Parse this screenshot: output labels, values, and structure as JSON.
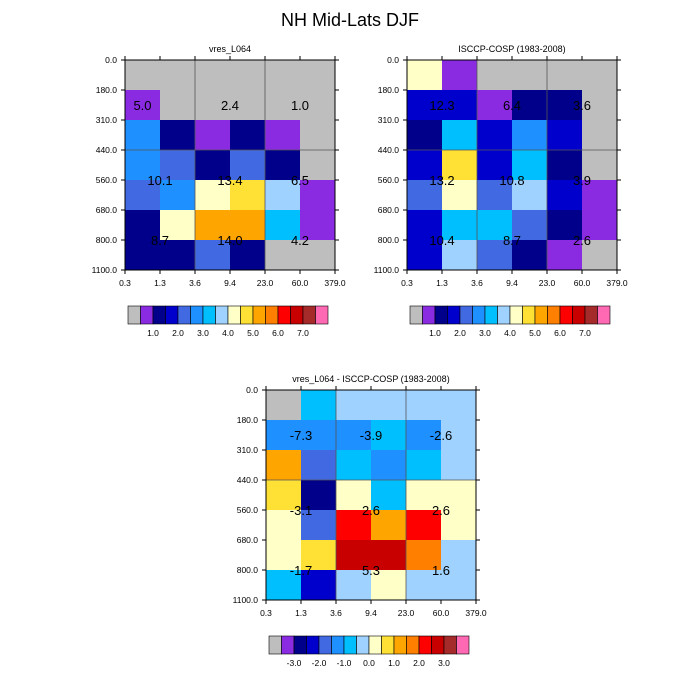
{
  "figure_title": "NH Mid-Lats DJF",
  "palette": {
    "main": [
      "#bebebe",
      "#8a2be2",
      "#00008b",
      "#0000cd",
      "#4169e1",
      "#1e90ff",
      "#00bfff",
      "#a0d2ff",
      "#ffffc8",
      "#ffe135",
      "#ffa500",
      "#ff7f00",
      "#ff0000",
      "#c80000",
      "#a52a2a",
      "#ff69b4"
    ],
    "diff": [
      "#bebebe",
      "#8a2be2",
      "#00008b",
      "#0000cd",
      "#4169e1",
      "#1e90ff",
      "#00bfff",
      "#a0d2ff",
      "#ffffc8",
      "#ffe135",
      "#ffa500",
      "#ff7f00",
      "#ff0000",
      "#c80000",
      "#a52a2a",
      "#ff69b4"
    ]
  },
  "chart_data": [
    {
      "type": "heatmap",
      "title": "vres_L064",
      "x_ticks": [
        "0.3",
        "1.3",
        "3.6",
        "9.4",
        "23.0",
        "60.0",
        "379.0"
      ],
      "y_ticks": [
        "0.0",
        "180.0",
        "310.0",
        "440.0",
        "560.0",
        "680.0",
        "800.0",
        "1100.0"
      ],
      "cell_colors": [
        [
          0,
          0,
          0,
          0,
          0,
          0
        ],
        [
          1,
          0,
          0,
          0,
          0,
          0
        ],
        [
          5,
          2,
          1,
          2,
          1,
          0
        ],
        [
          5,
          4,
          2,
          4,
          2,
          0
        ],
        [
          4,
          5,
          8,
          9,
          7,
          1
        ],
        [
          2,
          8,
          10,
          10,
          6,
          1
        ],
        [
          2,
          2,
          4,
          2,
          0,
          0
        ]
      ],
      "group_labels": [
        {
          "text": "5.0",
          "col": 0.5,
          "row": 1.5
        },
        {
          "text": "2.4",
          "col": 3,
          "row": 1.5
        },
        {
          "text": "1.0",
          "col": 5,
          "row": 1.5
        },
        {
          "text": "10.1",
          "col": 1,
          "row": 4
        },
        {
          "text": "13.4",
          "col": 3,
          "row": 4
        },
        {
          "text": "6.5",
          "col": 5,
          "row": 4
        },
        {
          "text": "8.7",
          "col": 1,
          "row": 6
        },
        {
          "text": "14.0",
          "col": 3,
          "row": 6
        },
        {
          "text": "4.2",
          "col": 5,
          "row": 6
        }
      ],
      "colorbar_labels": [
        "1.0",
        "2.0",
        "3.0",
        "4.0",
        "5.0",
        "6.0",
        "7.0"
      ]
    },
    {
      "type": "heatmap",
      "title": "ISCCP-COSP (1983-2008)",
      "x_ticks": [
        "0.3",
        "1.3",
        "3.6",
        "9.4",
        "23.0",
        "60.0",
        "379.0"
      ],
      "y_ticks": [
        "0.0",
        "180.0",
        "310.0",
        "440.0",
        "560.0",
        "680.0",
        "800.0",
        "1100.0"
      ],
      "cell_colors": [
        [
          8,
          1,
          0,
          0,
          0,
          0
        ],
        [
          3,
          3,
          1,
          2,
          2,
          0
        ],
        [
          2,
          6,
          3,
          5,
          3,
          0
        ],
        [
          3,
          9,
          3,
          6,
          2,
          0
        ],
        [
          4,
          8,
          4,
          7,
          3,
          1
        ],
        [
          3,
          6,
          6,
          4,
          2,
          1
        ],
        [
          3,
          7,
          4,
          2,
          1,
          0
        ]
      ],
      "group_labels": [
        {
          "text": "12.3",
          "col": 1,
          "row": 1.5
        },
        {
          "text": "6.4",
          "col": 3,
          "row": 1.5
        },
        {
          "text": "3.6",
          "col": 5,
          "row": 1.5
        },
        {
          "text": "13.2",
          "col": 1,
          "row": 4
        },
        {
          "text": "10.8",
          "col": 3,
          "row": 4
        },
        {
          "text": "3.9",
          "col": 5,
          "row": 4
        },
        {
          "text": "10.4",
          "col": 1,
          "row": 6
        },
        {
          "text": "8.7",
          "col": 3,
          "row": 6
        },
        {
          "text": "2.6",
          "col": 5,
          "row": 6
        }
      ],
      "colorbar_labels": [
        "1.0",
        "2.0",
        "3.0",
        "4.0",
        "5.0",
        "6.0",
        "7.0"
      ]
    },
    {
      "type": "heatmap",
      "title": "vres_L064 - ISCCP-COSP (1983-2008)",
      "x_ticks": [
        "0.3",
        "1.3",
        "3.6",
        "9.4",
        "23.0",
        "60.0",
        "379.0"
      ],
      "y_ticks": [
        "0.0",
        "180.0",
        "310.0",
        "440.0",
        "560.0",
        "680.0",
        "800.0",
        "1100.0"
      ],
      "cell_colors": [
        [
          0,
          6,
          7,
          7,
          7,
          7
        ],
        [
          5,
          5,
          5,
          6,
          5,
          7
        ],
        [
          10,
          4,
          6,
          5,
          6,
          7
        ],
        [
          9,
          2,
          8,
          6,
          8,
          8
        ],
        [
          8,
          4,
          12,
          10,
          12,
          8
        ],
        [
          8,
          9,
          13,
          13,
          11,
          7
        ],
        [
          6,
          3,
          7,
          8,
          7,
          7
        ]
      ],
      "group_labels": [
        {
          "text": "-7.3",
          "col": 1,
          "row": 1.5
        },
        {
          "text": "-3.9",
          "col": 3,
          "row": 1.5
        },
        {
          "text": "-2.6",
          "col": 5,
          "row": 1.5
        },
        {
          "text": "-3.1",
          "col": 1,
          "row": 4
        },
        {
          "text": "2.6",
          "col": 3,
          "row": 4
        },
        {
          "text": "2.6",
          "col": 5,
          "row": 4
        },
        {
          "text": "-1.7",
          "col": 1,
          "row": 6
        },
        {
          "text": "5.3",
          "col": 3,
          "row": 6
        },
        {
          "text": "1.6",
          "col": 5,
          "row": 6
        }
      ],
      "colorbar_labels": [
        "-3.0",
        "-2.0",
        "-1.0",
        "0.0",
        "1.0",
        "2.0",
        "3.0"
      ]
    }
  ]
}
